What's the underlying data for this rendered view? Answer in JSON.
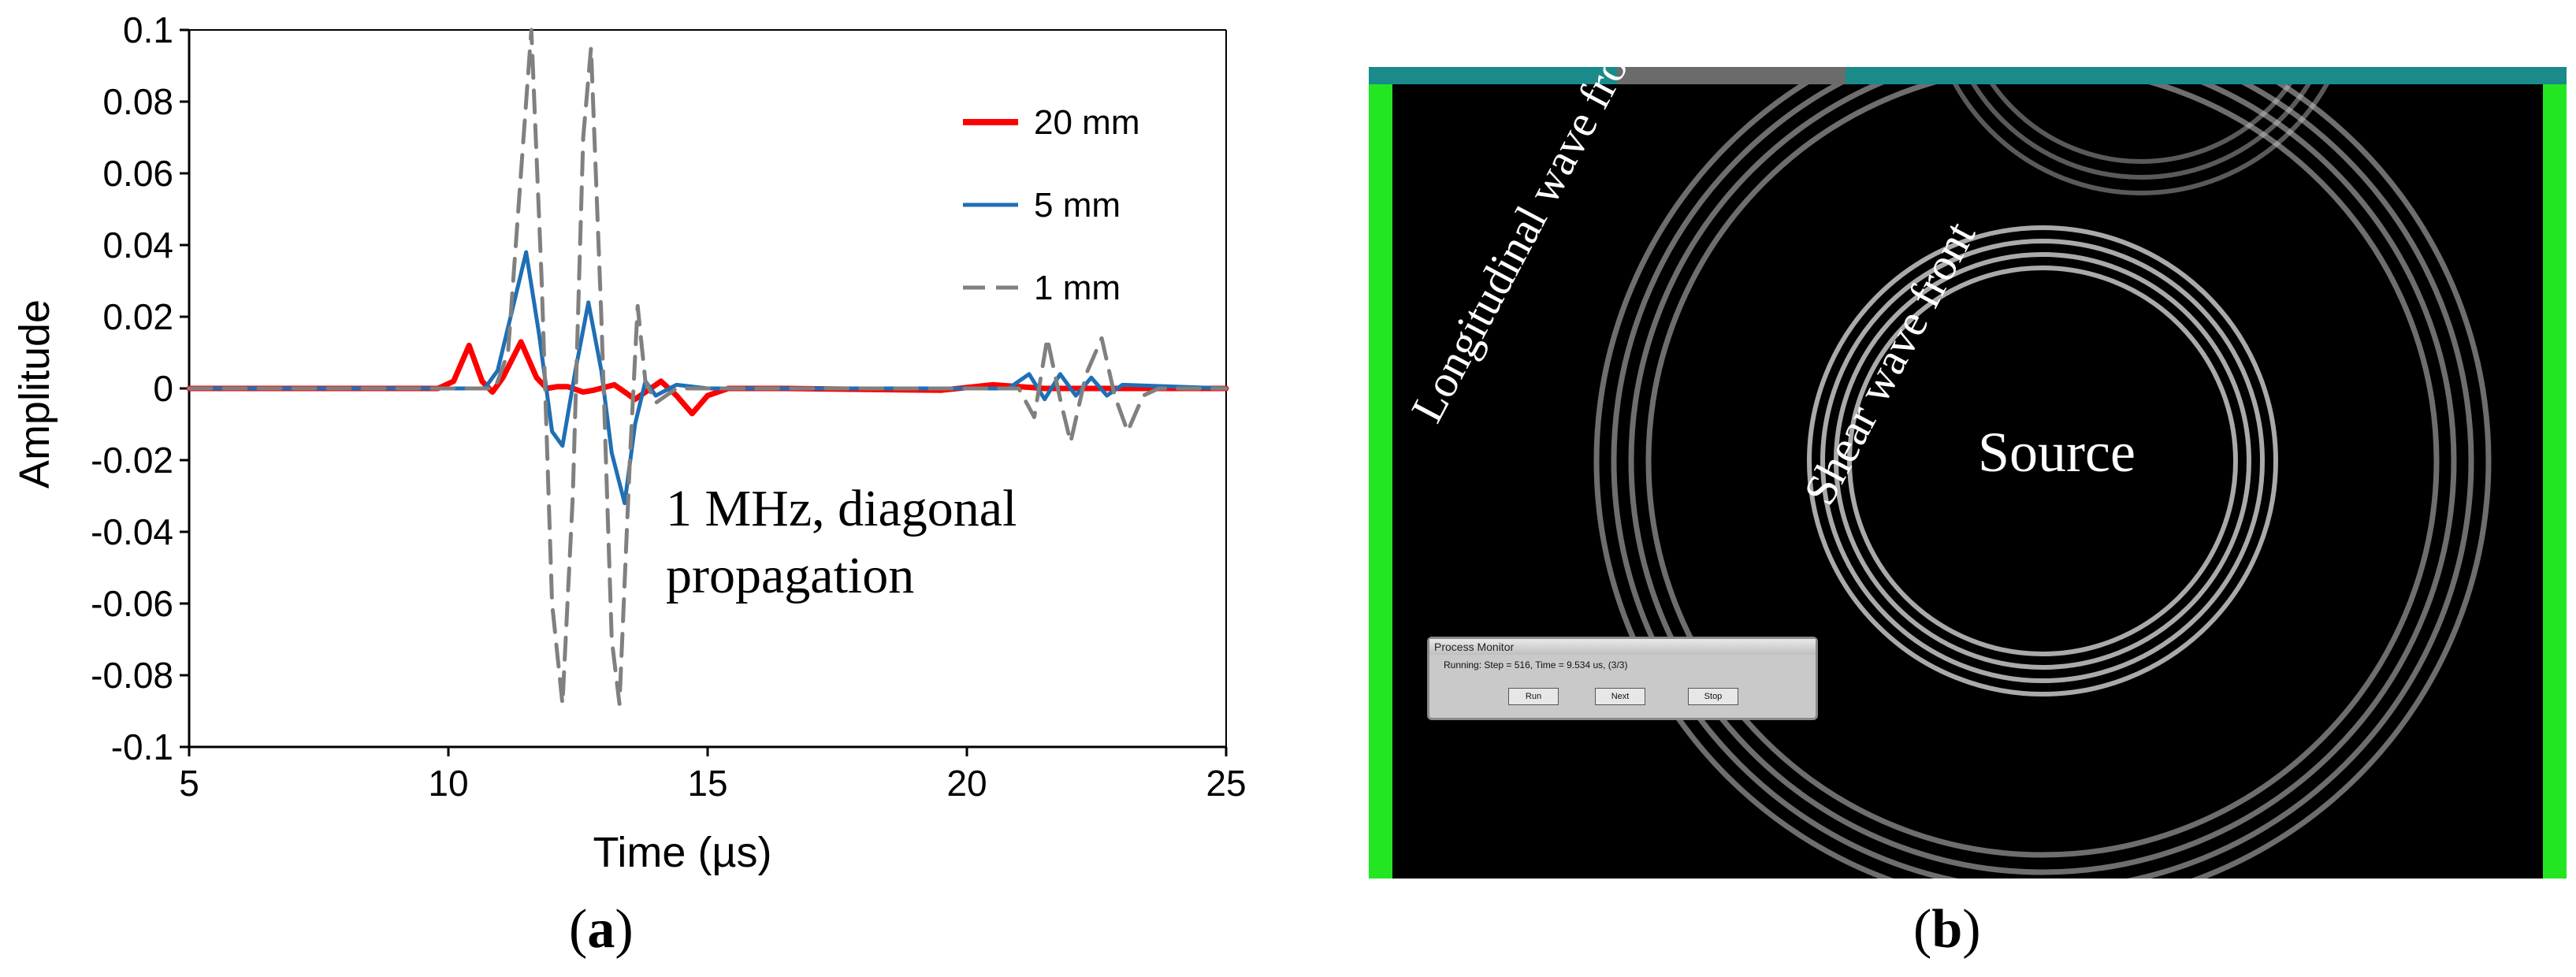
{
  "chart_data": {
    "type": "line",
    "title": "",
    "xlabel": "Time (µs)",
    "ylabel": "Amplitude",
    "xlim": [
      5,
      25
    ],
    "ylim": [
      -0.1,
      0.1
    ],
    "x_ticks": [
      "5",
      "10",
      "15",
      "20",
      "25"
    ],
    "y_ticks": [
      "0.1",
      "0.08",
      "0.06",
      "0.04",
      "0.02",
      "0",
      "-0.02",
      "-0.04",
      "-0.06",
      "-0.08",
      "-0.1"
    ],
    "legend_position": "top-right",
    "annotation": [
      "1 MHz, diagonal",
      "propagation"
    ],
    "series": [
      {
        "name": "20 mm",
        "color": "#ff0000",
        "style": "solid",
        "points": [
          [
            5,
            0
          ],
          [
            9.8,
            0
          ],
          [
            10.1,
            0.002
          ],
          [
            10.4,
            0.012
          ],
          [
            10.65,
            0.002
          ],
          [
            10.85,
            -0.001
          ],
          [
            11.05,
            0.003
          ],
          [
            11.4,
            0.013
          ],
          [
            11.7,
            0.003
          ],
          [
            11.9,
            0
          ],
          [
            12.1,
            0.0005
          ],
          [
            12.3,
            0.0005
          ],
          [
            12.6,
            -0.001
          ],
          [
            12.8,
            -0.0005
          ],
          [
            13.2,
            0.001
          ],
          [
            13.6,
            -0.003
          ],
          [
            13.8,
            -0.001
          ],
          [
            14.1,
            0.002
          ],
          [
            14.4,
            -0.002
          ],
          [
            14.7,
            -0.007
          ],
          [
            15.0,
            -0.002
          ],
          [
            15.4,
            0
          ],
          [
            16.5,
            0
          ],
          [
            19.5,
            -0.0005
          ],
          [
            20.5,
            0.001
          ],
          [
            21.5,
            0
          ],
          [
            25,
            0
          ]
        ]
      },
      {
        "name": "5 mm",
        "color": "#1f6fb4",
        "style": "solid",
        "points": [
          [
            5,
            0
          ],
          [
            10.7,
            0
          ],
          [
            10.95,
            0.005
          ],
          [
            11.2,
            0.02
          ],
          [
            11.5,
            0.038
          ],
          [
            11.75,
            0.015
          ],
          [
            12.0,
            -0.012
          ],
          [
            12.2,
            -0.016
          ],
          [
            12.45,
            0.005
          ],
          [
            12.7,
            0.024
          ],
          [
            12.95,
            0.005
          ],
          [
            13.15,
            -0.018
          ],
          [
            13.4,
            -0.032
          ],
          [
            13.6,
            -0.01
          ],
          [
            13.8,
            0.002
          ],
          [
            14.0,
            -0.002
          ],
          [
            14.4,
            0.001
          ],
          [
            15,
            0
          ],
          [
            20,
            0
          ],
          [
            20.8,
            0
          ],
          [
            21.2,
            0.004
          ],
          [
            21.5,
            -0.003
          ],
          [
            21.8,
            0.004
          ],
          [
            22.1,
            -0.002
          ],
          [
            22.4,
            0.003
          ],
          [
            22.7,
            -0.002
          ],
          [
            23.0,
            0.001
          ],
          [
            25,
            0
          ]
        ]
      },
      {
        "name": "1 mm",
        "color": "#808080",
        "style": "dashed",
        "points": [
          [
            5,
            0
          ],
          [
            10.9,
            0
          ],
          [
            11.15,
            0.01
          ],
          [
            11.4,
            0.06
          ],
          [
            11.6,
            0.1
          ],
          [
            11.8,
            0.03
          ],
          [
            12.0,
            -0.06
          ],
          [
            12.2,
            -0.088
          ],
          [
            12.4,
            -0.03
          ],
          [
            12.6,
            0.07
          ],
          [
            12.75,
            0.095
          ],
          [
            12.95,
            0.02
          ],
          [
            13.15,
            -0.07
          ],
          [
            13.3,
            -0.088
          ],
          [
            13.5,
            -0.02
          ],
          [
            13.65,
            0.023
          ],
          [
            13.8,
            0.002
          ],
          [
            14.0,
            -0.004
          ],
          [
            14.4,
            0
          ],
          [
            20,
            0
          ],
          [
            21,
            0
          ],
          [
            21.3,
            -0.008
          ],
          [
            21.55,
            0.014
          ],
          [
            21.8,
            -0.003
          ],
          [
            22.0,
            -0.015
          ],
          [
            22.3,
            0.004
          ],
          [
            22.6,
            0.014
          ],
          [
            22.85,
            -0.002
          ],
          [
            23.1,
            -0.012
          ],
          [
            23.4,
            -0.002
          ],
          [
            23.7,
            0
          ],
          [
            25,
            0
          ]
        ]
      }
    ]
  },
  "captions": {
    "a": "a",
    "b": "b"
  },
  "simulation": {
    "longitudinal_label": "Longitudinal wave front",
    "shear_label": "Shear wave front",
    "source_label": "Source",
    "process_monitor": {
      "title": "Process Monitor",
      "status": "Running:   Step = 516, Time = 9.534 us, (3/3)",
      "buttons": [
        "Run",
        "Next",
        "Stop"
      ]
    },
    "colors": {
      "border": "#22e622",
      "top_bar": "#1b8a8a",
      "top_segment": "#6b6b6b"
    }
  }
}
